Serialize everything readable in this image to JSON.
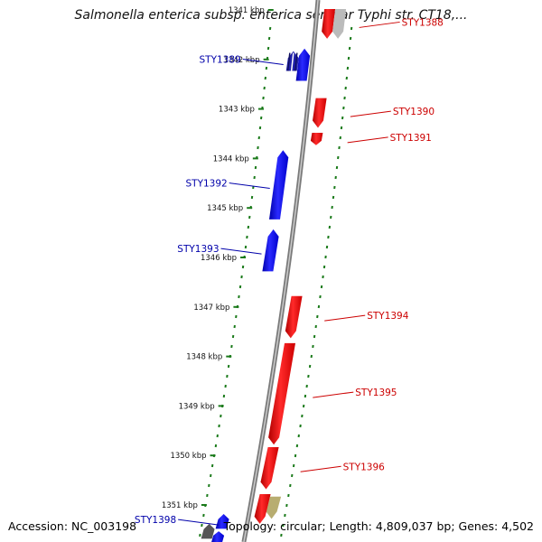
{
  "title": "Salmonella enterica subsp. enterica serovar Typhi str. CT18,...",
  "footer": {
    "accession": "Accession: NC_003198",
    "topology": "Topology: circular; Length: 4,809,037 bp; Genes: 4,502"
  },
  "colors": {
    "forward_gene": "#0000ee",
    "reverse_gene": "#ee0000",
    "backbone": "#888888",
    "tick": "#1a7a1a",
    "label_blue": "#0000aa",
    "label_red": "#cc0000"
  },
  "ticks": [
    "1341 kbp",
    "1342 kbp",
    "1343 kbp",
    "1344 kbp",
    "1345 kbp",
    "1346 kbp",
    "1347 kbp",
    "1348 kbp",
    "1349 kbp",
    "1350 kbp",
    "1351 kbp"
  ],
  "genes": [
    {
      "id": "STY1389",
      "strand": "forward",
      "start_kbp": 1341.85,
      "end_kbp": 1342.25,
      "color": "#2020aa",
      "label": "STY1389"
    },
    {
      "id": "g1389b",
      "strand": "forward",
      "start_kbp": 1341.8,
      "end_kbp": 1342.45,
      "color": "#0000ee",
      "label": ""
    },
    {
      "id": "STY1388",
      "strand": "reverse",
      "start_kbp": 1341.0,
      "end_kbp": 1341.6,
      "color": "#ee0000",
      "label": "STY1388"
    },
    {
      "id": "gGrey",
      "strand": "reverse",
      "start_kbp": 1341.0,
      "end_kbp": 1341.6,
      "color": "#bbbbbb",
      "label": ""
    },
    {
      "id": "STY1390",
      "strand": "reverse",
      "start_kbp": 1342.8,
      "end_kbp": 1343.4,
      "color": "#ee0000",
      "label": "STY1390"
    },
    {
      "id": "STY1391",
      "strand": "reverse",
      "start_kbp": 1343.5,
      "end_kbp": 1343.75,
      "color": "#ee0000",
      "label": "STY1391"
    },
    {
      "id": "STY1392",
      "strand": "forward",
      "start_kbp": 1343.85,
      "end_kbp": 1345.25,
      "color": "#0000ee",
      "label": "STY1392"
    },
    {
      "id": "STY1393",
      "strand": "forward",
      "start_kbp": 1345.45,
      "end_kbp": 1346.3,
      "color": "#0000ee",
      "label": "STY1393"
    },
    {
      "id": "STY1394",
      "strand": "reverse",
      "start_kbp": 1346.8,
      "end_kbp": 1347.65,
      "color": "#ee0000",
      "label": "STY1394"
    },
    {
      "id": "STY1395",
      "strand": "reverse",
      "start_kbp": 1347.75,
      "end_kbp": 1349.8,
      "color": "#ee0000",
      "label": "STY1395"
    },
    {
      "id": "STY1396",
      "strand": "reverse",
      "start_kbp": 1349.85,
      "end_kbp": 1350.7,
      "color": "#ee0000",
      "label": "STY1396"
    },
    {
      "id": "gOlive",
      "strand": "reverse",
      "start_kbp": 1350.85,
      "end_kbp": 1351.3,
      "color": "#b8ad70",
      "label": ""
    },
    {
      "id": "gRed2",
      "strand": "reverse",
      "start_kbp": 1350.8,
      "end_kbp": 1351.4,
      "color": "#ee0000",
      "label": ""
    },
    {
      "id": "STY1398",
      "strand": "forward",
      "start_kbp": 1351.2,
      "end_kbp": 1351.5,
      "color": "#0000ee",
      "label": "STY1398"
    },
    {
      "id": "gGrey2",
      "strand": "forward",
      "start_kbp": 1351.4,
      "end_kbp": 1351.7,
      "color": "#555555",
      "label": ""
    },
    {
      "id": "gBlue3",
      "strand": "forward",
      "start_kbp": 1351.55,
      "end_kbp": 1351.8,
      "color": "#0000ee",
      "label": ""
    }
  ]
}
